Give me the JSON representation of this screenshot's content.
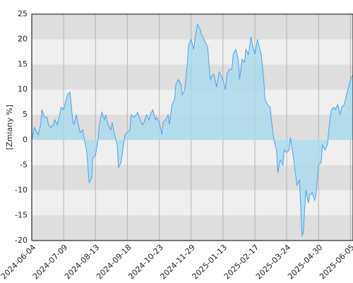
{
  "chart_data": {
    "type": "area",
    "y_label": "[Zmiany %]",
    "x": [
      0,
      2,
      3,
      5,
      7,
      8,
      10,
      12,
      13,
      15,
      17,
      18,
      20,
      22,
      23,
      25,
      27,
      28,
      30,
      32,
      33,
      35,
      37,
      38,
      40,
      42,
      43,
      45,
      47,
      48,
      50,
      52,
      53,
      55,
      57,
      58,
      60,
      62,
      63,
      65,
      67,
      68,
      70,
      72,
      73,
      75,
      77,
      78,
      80,
      82,
      83,
      85,
      87,
      88,
      90,
      92,
      93,
      95,
      97,
      98,
      100,
      102,
      103,
      105,
      107,
      108,
      110,
      112,
      113,
      115,
      117,
      118,
      120,
      122,
      123,
      125,
      127,
      128,
      130,
      132,
      133,
      135,
      137,
      138,
      140,
      142,
      143,
      145,
      147,
      148,
      150,
      152,
      153,
      155,
      157,
      158,
      160,
      162,
      163,
      165,
      167,
      168,
      170,
      172,
      173,
      175,
      177,
      178,
      180,
      182,
      183,
      185,
      187,
      188,
      190,
      192,
      193,
      195,
      197,
      198,
      200,
      202,
      203,
      205,
      207,
      208,
      210,
      212,
      213,
      215,
      217,
      218,
      220,
      222,
      223,
      225,
      227,
      228,
      230,
      232,
      233,
      235,
      237,
      238,
      240,
      242,
      243,
      245,
      247,
      248,
      250,
      252
    ],
    "values": [
      0,
      2.5,
      2,
      1,
      3,
      6,
      4.5,
      4.5,
      3,
      2.5,
      3,
      4,
      3,
      5,
      6.5,
      6,
      8,
      9,
      9.5,
      4,
      3,
      5,
      2.5,
      1.5,
      2,
      -1,
      -2,
      -8.5,
      -7.5,
      -3.5,
      -3,
      0,
      3,
      5.5,
      4,
      5,
      3,
      2,
      3.5,
      1,
      -1,
      -5.5,
      -4.5,
      -1,
      1,
      1.5,
      2,
      5,
      4.5,
      5,
      5.5,
      4,
      3,
      3.5,
      5,
      4,
      5,
      6,
      4,
      4.5,
      3.5,
      1,
      3.5,
      4,
      5,
      3,
      7,
      8,
      11,
      12,
      11,
      9,
      10,
      15,
      19,
      20,
      18,
      20,
      23,
      22,
      21,
      20,
      19,
      18.5,
      12,
      13,
      13,
      10.5,
      13.5,
      13,
      12,
      10,
      13,
      14,
      14,
      17,
      18,
      16,
      12,
      16,
      15.5,
      18,
      17,
      20.5,
      19,
      17,
      20,
      19,
      17,
      12,
      8,
      7,
      6.5,
      4,
      0,
      -2,
      -6.5,
      -4,
      -5,
      -2,
      -2.5,
      -2,
      0.5,
      -3,
      -7,
      -9,
      -8,
      -19,
      -18.5,
      -10,
      -12.5,
      -11,
      -10.5,
      -12,
      -11,
      -5,
      -4.5,
      -1,
      -2,
      -1,
      2,
      6,
      6.5,
      6,
      7,
      5,
      6.5,
      7,
      9,
      10,
      12,
      13
    ],
    "line_color": "#4aa3e8",
    "fill_color": "#a9d9ec",
    "xlim": [
      0,
      252
    ],
    "xticks": [
      {
        "value": 0,
        "label": "2024-06-04"
      },
      {
        "value": 25,
        "label": "2024-07-09"
      },
      {
        "value": 50,
        "label": "2024-08-13"
      },
      {
        "value": 75,
        "label": "2024-09-18"
      },
      {
        "value": 100,
        "label": "2024-10-23"
      },
      {
        "value": 125,
        "label": "2024-11-29"
      },
      {
        "value": 150,
        "label": "2025-01-13"
      },
      {
        "value": 175,
        "label": "2025-02-17"
      },
      {
        "value": 200,
        "label": "2025-03-24"
      },
      {
        "value": 225,
        "label": "2025-04-30"
      },
      {
        "value": 250,
        "label": "2025-06-05"
      }
    ],
    "ylim": [
      -20,
      25
    ],
    "yticks": [
      -20,
      -15,
      -10,
      -5,
      0,
      5,
      10,
      15,
      20,
      25
    ],
    "grid": true
  }
}
